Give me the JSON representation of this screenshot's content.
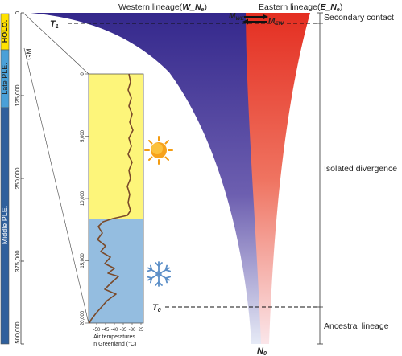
{
  "lineages": {
    "western": {
      "prefix": "Western lineage(",
      "sym": "W_N",
      "sub": "e",
      "suffix": ")",
      "color": "#3b3190"
    },
    "eastern": {
      "prefix": "Eastern lineage(",
      "sym": "E_N",
      "sub": "e",
      "suffix": ")",
      "color": "#e8352a"
    }
  },
  "migration": {
    "west_to_east": {
      "sym": "M",
      "sub": "WE"
    },
    "east_to_west": {
      "sym": "M",
      "sub": "EW"
    }
  },
  "times": {
    "t1": {
      "sym": "T",
      "sub": "1"
    },
    "t0": {
      "sym": "T",
      "sub": "0"
    },
    "n0": {
      "sym": "N",
      "sub": "0"
    }
  },
  "periods": [
    {
      "label": "HOLO.",
      "color": "#ffe200",
      "text_color": "#1a1a1a"
    },
    {
      "label": "Late PLE.",
      "color": "#4aa0d8",
      "text_color": "#1a1a1a"
    },
    {
      "label": "Middle PLE.",
      "color": "#2f5f9c",
      "text_color": "#ffffff"
    }
  ],
  "lgm_label": "LGM",
  "time_axis": {
    "ticks": [
      "0",
      "125,000",
      "250,000",
      "375,000",
      "500,000"
    ]
  },
  "phases": {
    "secondary": "Secondary contact",
    "isolated": "Isolated divergence",
    "ancestral": "Ancestral lineage"
  },
  "inset": {
    "ticks_left": [
      "0",
      "5,000",
      "10,000",
      "15,000",
      "20,000"
    ],
    "ticks_bottom": [
      "-50",
      "-45",
      "-40",
      "-35",
      "-30",
      "25"
    ],
    "xlabel_line1": "Air temperatures",
    "xlabel_line2": "in Greenland (°C)",
    "warm_color": "#fdf57a",
    "cold_color": "#94bde0",
    "curve_color": "#7a4a2a"
  },
  "icons": {
    "sun": "sun-icon",
    "snowflake": "snowflake-icon"
  }
}
